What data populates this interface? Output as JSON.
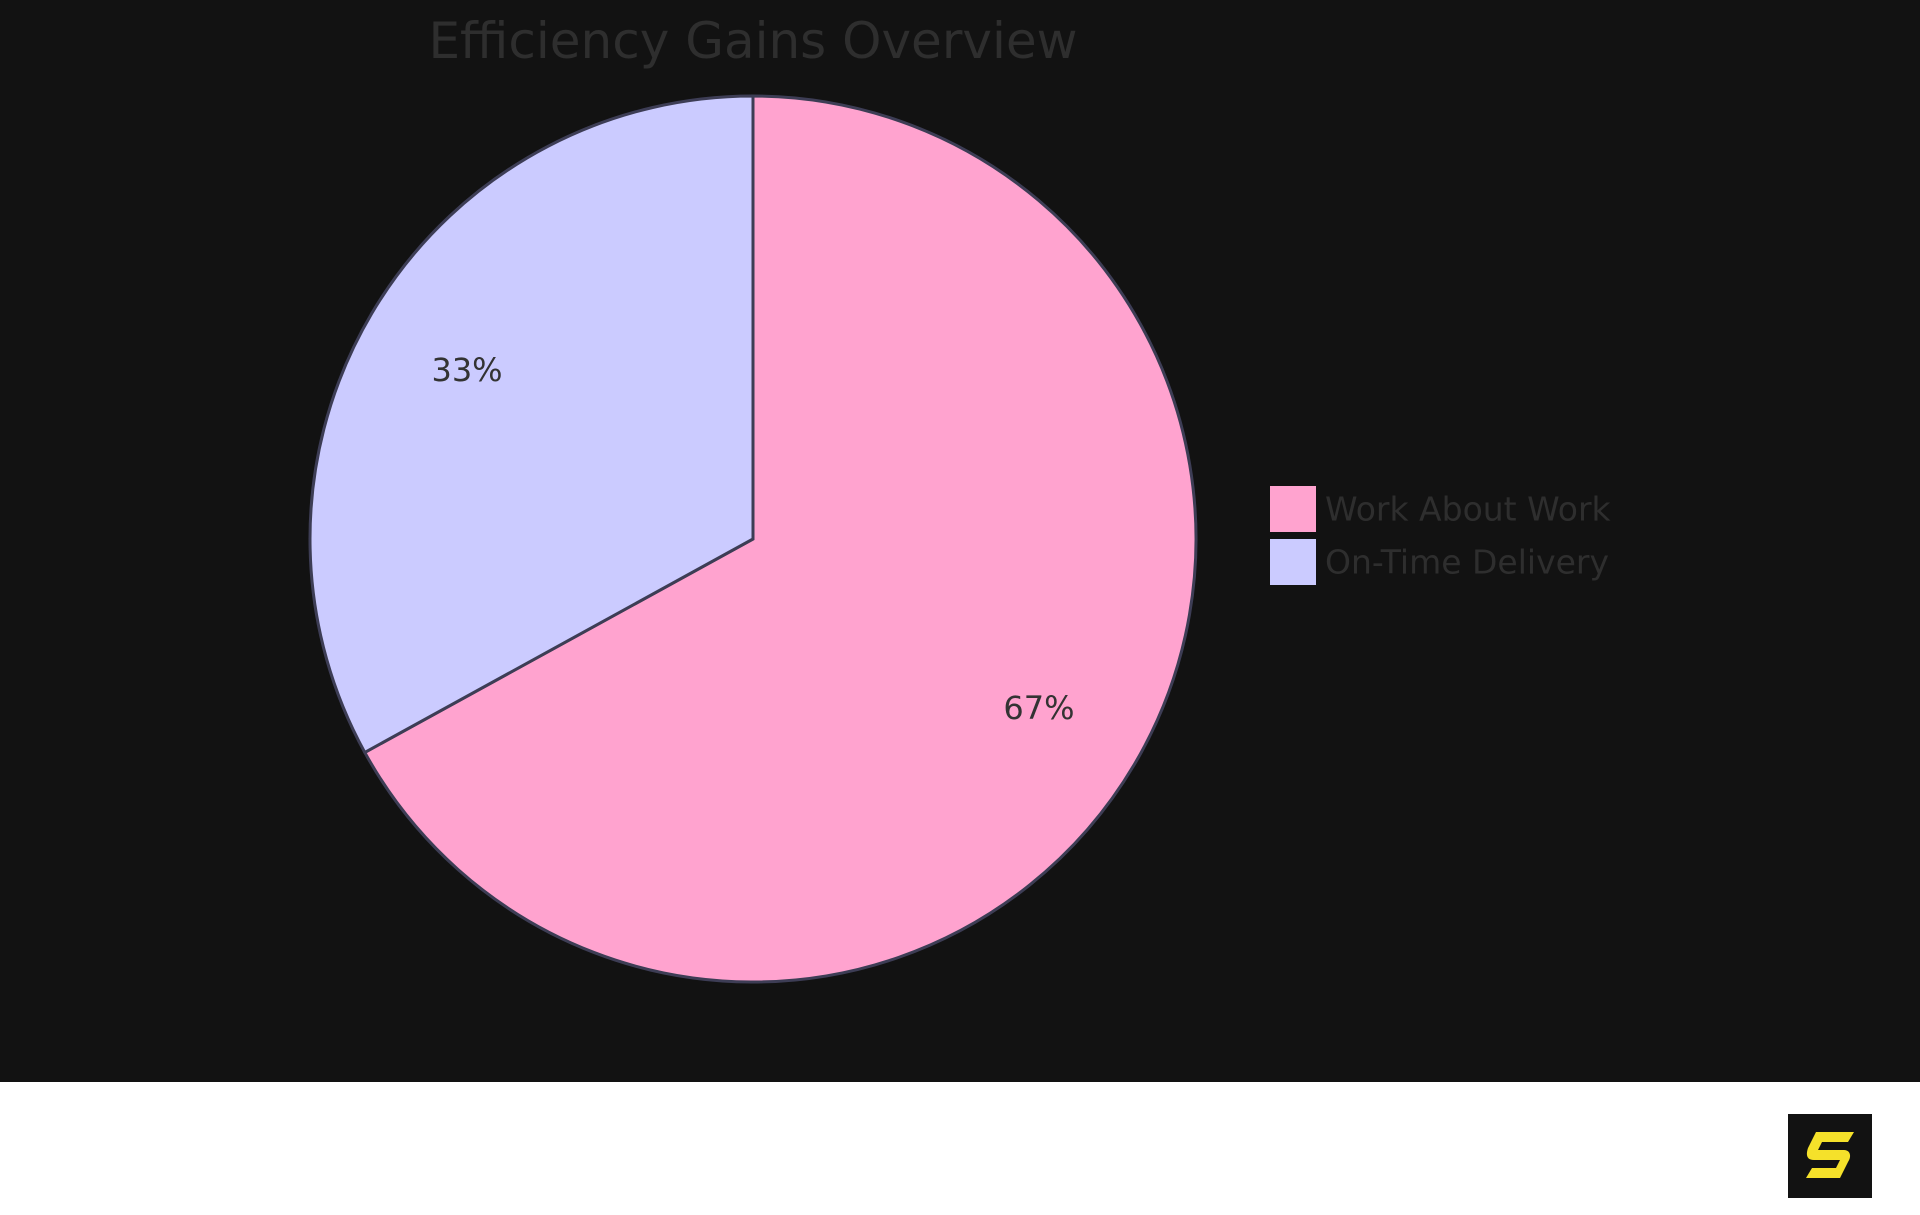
{
  "chart_data": {
    "type": "pie",
    "title": "Efficiency Gains Overview",
    "slices": [
      {
        "name": "Work About Work",
        "value": 67,
        "label": "67%",
        "color": "#ffa3cf"
      },
      {
        "name": "On-Time Delivery",
        "value": 33,
        "label": "33%",
        "color": "#cbcbff"
      }
    ],
    "start_angle_deg": 0,
    "direction": "clockwise",
    "legend_position": "right",
    "stroke_color": "#3d3d55"
  },
  "colors": {
    "chart_background": "#121212",
    "page_background": "#ffffff",
    "title_color": "#2e2e2e",
    "legend_text_color": "#2e2e2e",
    "slice_label_color": "#333333",
    "logo_background": "#121212",
    "logo_accent": "#f5e12a"
  },
  "logo": {
    "icon": "brand-s-logo-icon"
  }
}
